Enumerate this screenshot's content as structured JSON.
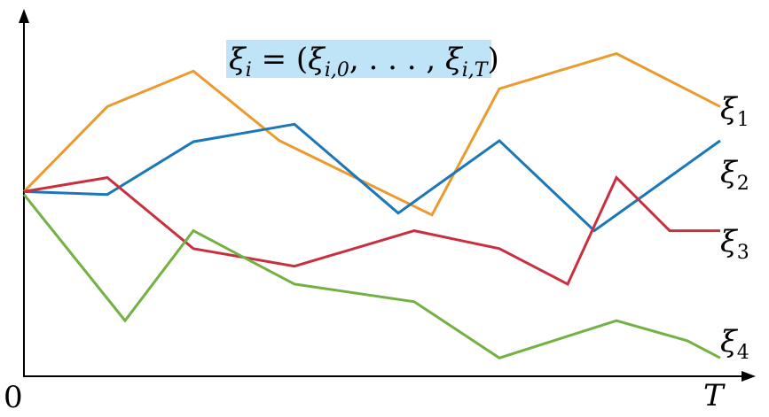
{
  "title_formula": {
    "xi": "ξ",
    "sub_i": "i",
    "eq": " = (",
    "sub_i0": "i,0",
    "sep": ", . . . , ",
    "sub_iT": "i,T",
    "close": ")",
    "highlight_color": "#bfe3f7"
  },
  "axes": {
    "origin_label": "0",
    "x_end_label": "T",
    "x_ticks": [
      0,
      1,
      2,
      3,
      4,
      5,
      6,
      7,
      8,
      9,
      10
    ],
    "y_range": [
      0,
      1
    ]
  },
  "series": [
    {
      "id": "xi1",
      "symbol": "ξ",
      "index": "1",
      "color": "#eb9b2e",
      "points": [
        [
          0,
          0.515
        ],
        [
          1,
          0.752
        ],
        [
          2,
          0.851
        ],
        [
          3,
          0.657
        ],
        [
          4,
          0.45
        ],
        [
          5,
          0.802
        ],
        [
          6,
          0.9
        ],
        [
          7,
          0.752
        ]
      ]
    },
    {
      "id": "xi2",
      "symbol": "ξ",
      "index": "2",
      "color": "#1b77b8",
      "points": [
        [
          0,
          0.515
        ],
        [
          1,
          0.507
        ],
        [
          2,
          0.654
        ],
        [
          3,
          0.703
        ],
        [
          4,
          0.455
        ],
        [
          5,
          0.657
        ],
        [
          6,
          0.406
        ],
        [
          7,
          0.657
        ]
      ]
    },
    {
      "id": "xi3",
      "symbol": "ξ",
      "index": "3",
      "color": "#c9303f",
      "points": [
        [
          0,
          0.515
        ],
        [
          1,
          0.554
        ],
        [
          2,
          0.356
        ],
        [
          3,
          0.307
        ],
        [
          4,
          0.406
        ],
        [
          5,
          0.356
        ],
        [
          6,
          0.257
        ],
        [
          7,
          0.554
        ],
        [
          8,
          0.406
        ],
        [
          9,
          0.406
        ]
      ]
    },
    {
      "id": "xi4",
      "symbol": "ξ",
      "index": "4",
      "color": "#74b043",
      "points": [
        [
          0,
          0.507
        ],
        [
          1,
          0.155
        ],
        [
          2,
          0.406
        ],
        [
          3,
          0.257
        ],
        [
          4,
          0.208
        ],
        [
          5,
          0.051
        ],
        [
          6,
          0.155
        ],
        [
          7,
          0.099
        ],
        [
          8,
          0.051
        ]
      ]
    }
  ]
}
